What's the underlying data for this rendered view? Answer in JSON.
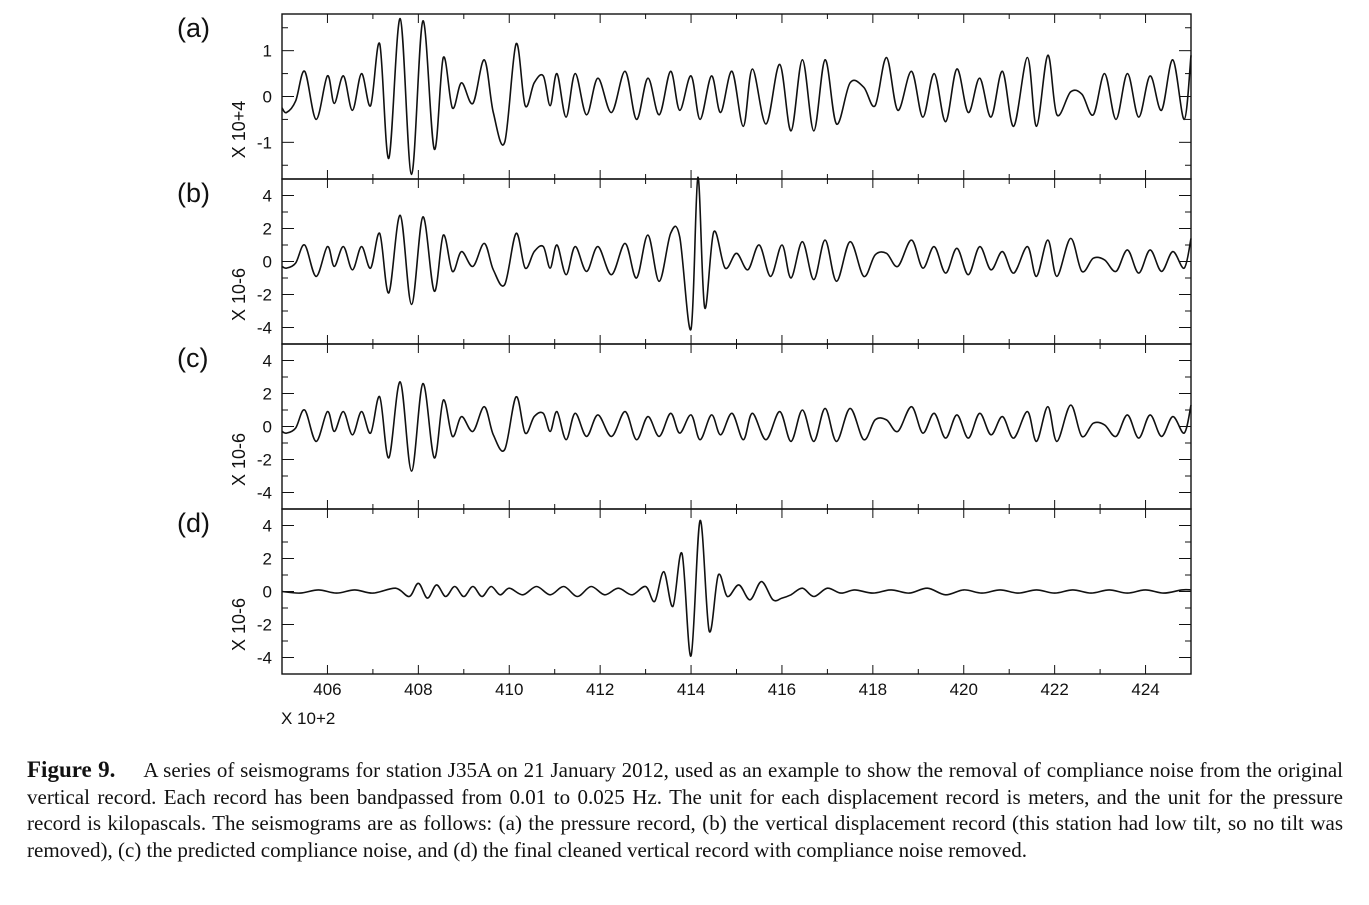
{
  "figure": {
    "caption_label": "Figure 9.",
    "caption_text": "A series of seismograms for station J35A on 21 January 2012, used as an example to show the removal of compliance noise from the original vertical record. Each record has been bandpassed from 0.01 to 0.025 Hz. The unit for each displacement record is meters, and the unit for the pressure record is kilopascals. The seismograms are as follows: (a) the pressure record, (b) the vertical displacement record (this station had low tilt, so no tilt was removed), (c) the predicted compliance noise, and (d) the final cleaned vertical record with compliance noise removed."
  },
  "chart_data": {
    "type": "line",
    "x_tick_labels": [
      "406",
      "408",
      "410",
      "412",
      "414",
      "416",
      "418",
      "420",
      "422",
      "424"
    ],
    "x_scale_label": "X 10+2",
    "xlim": [
      405,
      425
    ],
    "grid": false,
    "panels": [
      {
        "label": "(a)",
        "scale_label": "X 10+4",
        "ylim": [
          -1.8,
          1.8
        ],
        "yticks": [
          -1,
          0,
          1
        ],
        "ytick_labels": [
          "-1",
          "0",
          "1"
        ],
        "x": [
          405.0,
          405.1,
          405.3,
          405.5,
          405.75,
          406.0,
          406.15,
          406.35,
          406.55,
          406.75,
          406.95,
          407.15,
          407.35,
          407.6,
          407.85,
          408.1,
          408.35,
          408.55,
          408.75,
          408.95,
          409.2,
          409.45,
          409.65,
          409.9,
          410.15,
          410.35,
          410.55,
          410.75,
          410.9,
          411.05,
          411.25,
          411.45,
          411.7,
          411.95,
          412.25,
          412.55,
          412.8,
          413.05,
          413.3,
          413.55,
          413.75,
          414.0,
          414.2,
          414.45,
          414.65,
          414.9,
          415.15,
          415.35,
          415.65,
          415.95,
          416.2,
          416.45,
          416.7,
          416.95,
          417.2,
          417.5,
          417.8,
          418.05,
          418.3,
          418.55,
          418.85,
          419.1,
          419.35,
          419.6,
          419.85,
          420.1,
          420.35,
          420.6,
          420.85,
          421.1,
          421.4,
          421.6,
          421.85,
          422.05,
          422.35,
          422.6,
          422.85,
          423.1,
          423.35,
          423.6,
          423.85,
          424.1,
          424.35,
          424.6,
          424.85,
          425.0
        ],
        "y": [
          -0.25,
          -0.35,
          -0.1,
          0.55,
          -0.5,
          0.45,
          -0.15,
          0.45,
          -0.3,
          0.5,
          -0.2,
          1.15,
          -1.35,
          1.7,
          -1.7,
          1.65,
          -1.15,
          0.85,
          -0.25,
          0.3,
          -0.15,
          0.8,
          -0.35,
          -1.0,
          1.15,
          -0.2,
          0.3,
          0.45,
          -0.2,
          0.5,
          -0.45,
          0.5,
          -0.4,
          0.4,
          -0.35,
          0.55,
          -0.5,
          0.4,
          -0.4,
          0.55,
          -0.3,
          0.45,
          -0.5,
          0.45,
          -0.35,
          0.55,
          -0.65,
          0.6,
          -0.6,
          0.7,
          -0.75,
          0.8,
          -0.75,
          0.8,
          -0.6,
          0.3,
          0.2,
          -0.2,
          0.85,
          -0.3,
          0.55,
          -0.45,
          0.5,
          -0.55,
          0.6,
          -0.35,
          0.4,
          -0.45,
          0.55,
          -0.65,
          0.85,
          -0.65,
          0.9,
          -0.4,
          0.1,
          0.05,
          -0.4,
          0.5,
          -0.5,
          0.5,
          -0.45,
          0.45,
          -0.3,
          0.8,
          -0.5,
          0.9
        ]
      },
      {
        "label": "(b)",
        "scale_label": "X 10-6",
        "ylim": [
          -5,
          5
        ],
        "yticks": [
          -4,
          -2,
          0,
          2,
          4
        ],
        "ytick_labels": [
          "-4",
          "-2",
          "0",
          "2",
          "4"
        ],
        "x": [
          405.0,
          405.1,
          405.3,
          405.5,
          405.75,
          406.0,
          406.15,
          406.35,
          406.55,
          406.75,
          406.95,
          407.15,
          407.35,
          407.6,
          407.85,
          408.1,
          408.35,
          408.55,
          408.75,
          408.95,
          409.2,
          409.45,
          409.65,
          409.9,
          410.15,
          410.35,
          410.55,
          410.75,
          410.9,
          411.05,
          411.25,
          411.45,
          411.7,
          411.95,
          412.25,
          412.55,
          412.8,
          413.05,
          413.3,
          413.55,
          413.75,
          414.0,
          414.15,
          414.3,
          414.5,
          414.75,
          415.0,
          415.25,
          415.5,
          415.75,
          416.0,
          416.2,
          416.45,
          416.7,
          416.95,
          417.2,
          417.5,
          417.8,
          418.05,
          418.3,
          418.55,
          418.85,
          419.1,
          419.35,
          419.6,
          419.85,
          420.1,
          420.35,
          420.6,
          420.85,
          421.1,
          421.4,
          421.6,
          421.85,
          422.05,
          422.35,
          422.6,
          422.85,
          423.1,
          423.35,
          423.6,
          423.85,
          424.1,
          424.35,
          424.6,
          424.85,
          425.0
        ],
        "y": [
          -0.3,
          -0.4,
          -0.1,
          1.0,
          -0.9,
          0.9,
          -0.3,
          0.9,
          -0.5,
          0.9,
          -0.4,
          1.7,
          -1.9,
          2.8,
          -2.6,
          2.7,
          -1.8,
          1.6,
          -0.6,
          0.6,
          -0.3,
          1.1,
          -0.5,
          -1.4,
          1.7,
          -0.4,
          0.6,
          0.9,
          -0.4,
          1.0,
          -0.8,
          0.9,
          -0.6,
          0.9,
          -0.8,
          1.1,
          -1.0,
          1.6,
          -1.2,
          1.7,
          1.5,
          -4.1,
          5.1,
          -2.8,
          1.8,
          -0.4,
          0.5,
          -0.5,
          1.0,
          -0.9,
          1.0,
          -1.0,
          1.2,
          -1.1,
          1.3,
          -1.2,
          1.2,
          -0.9,
          0.4,
          0.5,
          -0.3,
          1.3,
          -0.4,
          0.9,
          -0.7,
          0.8,
          -0.8,
          0.9,
          -0.5,
          0.6,
          -0.7,
          0.9,
          -0.9,
          1.3,
          -0.9,
          1.4,
          -0.6,
          0.2,
          0.1,
          -0.6,
          0.7,
          -0.7,
          0.7,
          -0.6,
          0.6,
          -0.4,
          1.4
        ]
      },
      {
        "label": "(c)",
        "scale_label": "X 10-6",
        "ylim": [
          -5,
          5
        ],
        "yticks": [
          -4,
          -2,
          0,
          2,
          4
        ],
        "ytick_labels": [
          "-4",
          "-2",
          "0",
          "2",
          "4"
        ],
        "x": [
          405.0,
          405.1,
          405.3,
          405.5,
          405.75,
          406.0,
          406.15,
          406.35,
          406.55,
          406.75,
          406.95,
          407.15,
          407.35,
          407.6,
          407.85,
          408.1,
          408.35,
          408.55,
          408.75,
          408.95,
          409.2,
          409.45,
          409.65,
          409.9,
          410.15,
          410.35,
          410.55,
          410.75,
          410.9,
          411.05,
          411.25,
          411.45,
          411.7,
          411.95,
          412.25,
          412.55,
          412.8,
          413.05,
          413.3,
          413.55,
          413.75,
          414.0,
          414.2,
          414.45,
          414.65,
          414.9,
          415.15,
          415.35,
          415.65,
          415.95,
          416.2,
          416.45,
          416.7,
          416.95,
          417.2,
          417.5,
          417.8,
          418.05,
          418.3,
          418.55,
          418.85,
          419.1,
          419.35,
          419.6,
          419.85,
          420.1,
          420.35,
          420.6,
          420.85,
          421.1,
          421.4,
          421.6,
          421.85,
          422.05,
          422.35,
          422.6,
          422.85,
          423.1,
          423.35,
          423.6,
          423.85,
          424.1,
          424.35,
          424.6,
          424.85,
          425.0
        ],
        "y": [
          -0.3,
          -0.4,
          -0.1,
          1.0,
          -0.9,
          0.9,
          -0.3,
          0.9,
          -0.5,
          0.9,
          -0.4,
          1.8,
          -1.9,
          2.7,
          -2.7,
          2.6,
          -1.9,
          1.6,
          -0.6,
          0.6,
          -0.3,
          1.2,
          -0.5,
          -1.4,
          1.8,
          -0.4,
          0.6,
          0.8,
          -0.3,
          0.9,
          -0.8,
          0.8,
          -0.6,
          0.7,
          -0.6,
          0.9,
          -0.8,
          0.6,
          -0.6,
          0.8,
          -0.4,
          0.7,
          -0.8,
          0.7,
          -0.5,
          0.8,
          -0.8,
          0.8,
          -0.8,
          0.9,
          -0.9,
          1.0,
          -0.9,
          1.1,
          -0.9,
          1.1,
          -0.8,
          0.4,
          0.4,
          -0.3,
          1.2,
          -0.4,
          0.8,
          -0.7,
          0.7,
          -0.7,
          0.8,
          -0.5,
          0.6,
          -0.7,
          0.9,
          -0.9,
          1.2,
          -0.9,
          1.3,
          -0.6,
          0.2,
          0.1,
          -0.6,
          0.7,
          -0.7,
          0.7,
          -0.6,
          0.6,
          -0.4,
          1.3
        ]
      },
      {
        "label": "(d)",
        "scale_label": "X 10-6",
        "ylim": [
          -5,
          5
        ],
        "yticks": [
          -4,
          -2,
          0,
          2,
          4
        ],
        "ytick_labels": [
          "-4",
          "-2",
          "0",
          "2",
          "4"
        ],
        "x": [
          405.0,
          405.4,
          405.8,
          406.2,
          406.6,
          407.0,
          407.5,
          407.8,
          408.0,
          408.2,
          408.4,
          408.6,
          408.8,
          409.0,
          409.2,
          409.4,
          409.6,
          409.8,
          410.0,
          410.3,
          410.6,
          410.9,
          411.2,
          411.5,
          411.8,
          412.1,
          412.4,
          412.7,
          413.0,
          413.2,
          413.4,
          413.6,
          413.8,
          414.0,
          414.2,
          414.4,
          414.6,
          414.8,
          415.05,
          415.3,
          415.55,
          415.8,
          416.0,
          416.2,
          416.45,
          416.7,
          417.0,
          417.3,
          417.6,
          418.0,
          418.4,
          418.8,
          419.2,
          419.6,
          420.0,
          420.4,
          420.8,
          421.2,
          421.6,
          422.0,
          422.4,
          422.8,
          423.2,
          423.6,
          424.0,
          424.4,
          424.8,
          425.0
        ],
        "y": [
          0.0,
          -0.1,
          0.1,
          -0.1,
          0.1,
          -0.1,
          0.2,
          -0.3,
          0.5,
          -0.4,
          0.4,
          -0.3,
          0.3,
          -0.3,
          0.3,
          -0.3,
          0.3,
          -0.2,
          0.2,
          -0.2,
          0.3,
          -0.2,
          0.3,
          -0.3,
          0.3,
          -0.2,
          0.2,
          -0.2,
          0.3,
          -0.6,
          1.2,
          -0.9,
          2.3,
          -3.9,
          4.3,
          -2.4,
          1.0,
          -0.3,
          0.4,
          -0.5,
          0.6,
          -0.5,
          -0.4,
          -0.2,
          0.2,
          -0.3,
          0.2,
          -0.1,
          0.1,
          -0.1,
          0.1,
          -0.1,
          0.2,
          -0.2,
          0.1,
          -0.1,
          0.1,
          -0.1,
          0.1,
          -0.1,
          0.1,
          -0.1,
          0.1,
          -0.1,
          0.1,
          -0.1,
          0.1,
          0.1
        ]
      }
    ]
  }
}
